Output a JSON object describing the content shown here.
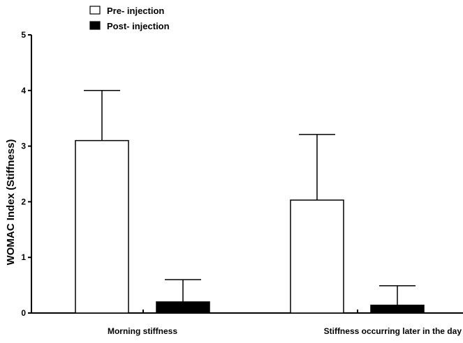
{
  "chart_data": {
    "type": "bar",
    "title": "",
    "xlabel": "",
    "ylabel": "WOMAC Index (Stiffness)",
    "ylim": [
      0,
      5
    ],
    "yticks": [
      "0",
      "1",
      "2",
      "3",
      "4",
      "5"
    ],
    "categories": [
      "Morning stiffness",
      "Stiffness occurring later in the day"
    ],
    "series": [
      {
        "name": "Pre- injection",
        "fill": "#ffffff",
        "values": [
          3.1,
          2.03
        ],
        "error_upper": [
          0.9,
          1.18
        ]
      },
      {
        "name": "Post- injection",
        "fill": "#000000",
        "values": [
          0.2,
          0.14
        ],
        "error_upper": [
          0.4,
          0.35
        ]
      }
    ],
    "legend_position": "top-left",
    "grid": false,
    "error_bars": "upper"
  }
}
